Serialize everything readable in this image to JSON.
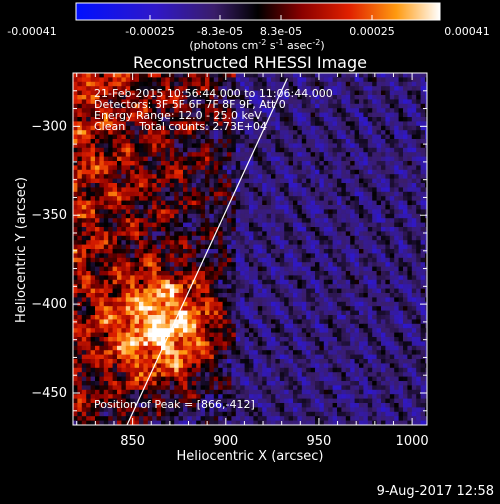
{
  "colorbar": {
    "ticks": [
      "-0.00041",
      "-0.00025",
      "-8.3e-05",
      "8.3e-05",
      "0.00025",
      "0.00041"
    ],
    "units_line1": "(photons cm",
    "units_sup1": "-2",
    "units_mid": " s",
    "units_sup2": "-1",
    "units_mid2": " asec",
    "units_sup3": "-2",
    "units_end": ")",
    "range": [
      -0.00041,
      0.00041
    ]
  },
  "chart_data": {
    "type": "heatmap",
    "title": "Reconstructed RHESSI Image",
    "xlabel": "Heliocentric X (arcsec)",
    "ylabel": "Heliocentric Y (arcsec)",
    "xlim": [
      818,
      1008
    ],
    "ylim": [
      -468,
      -270
    ],
    "x_ticks": [
      850,
      900,
      950,
      1000
    ],
    "y_ticks": [
      -300,
      -350,
      -400,
      -450
    ],
    "x_tick_labels": [
      "850",
      "900",
      "950",
      "1000"
    ],
    "y_tick_labels": [
      "−300",
      "−350",
      "−400",
      "−450"
    ],
    "annotations": [
      "21-Feb-2015 10:56:44.000 to 11:06:44.000",
      "Detectors: 3F 5F 6F 7F 8F 9F, Att 0",
      "Energy Range: 12.0 - 25.0 keV",
      "Clean    Total counts: 2.73E+04"
    ],
    "peak_label": "Position of Peak = [866,-412]",
    "peak": [
      866,
      -412
    ],
    "limb_line": [
      [
        847,
        -468
      ],
      [
        933,
        -273
      ]
    ],
    "colormap": "red-temperature (blue negative to white positive)"
  },
  "footer": {
    "date": "9-Aug-2017 12:58"
  }
}
